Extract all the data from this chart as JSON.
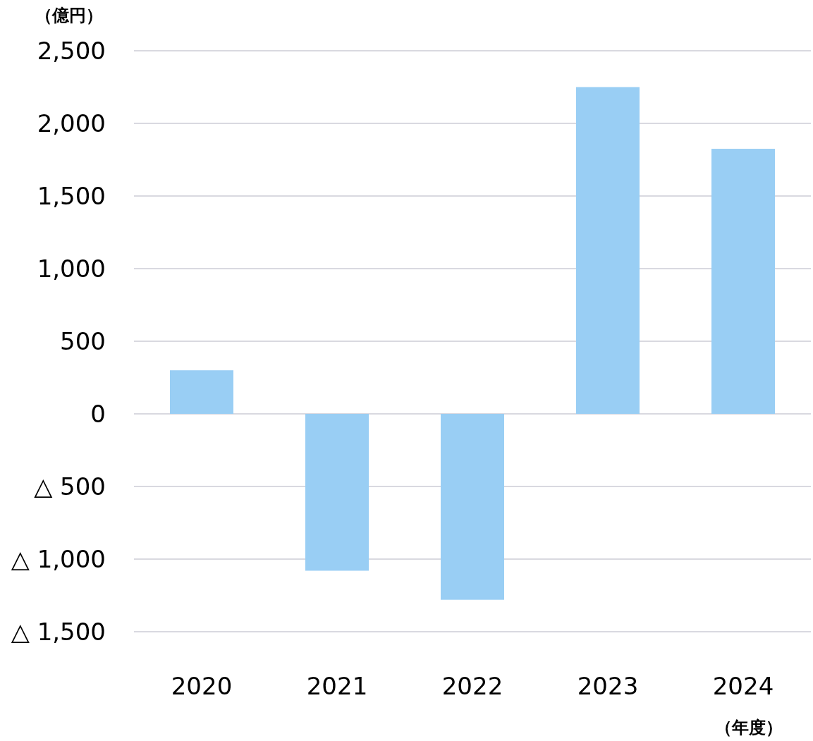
{
  "chart_data": {
    "type": "bar",
    "ylabel": "（億円）",
    "xlabel": "（年度）",
    "categories": [
      "2020",
      "2021",
      "2022",
      "2023",
      "2024"
    ],
    "values": [
      300,
      -1080,
      -1280,
      2250,
      1825
    ],
    "color": "#99cef4",
    "ylim": [
      -1500,
      2500
    ],
    "yticks": [
      {
        "value": -1500,
        "label": "△ 1,500"
      },
      {
        "value": -1000,
        "label": "△ 1,000"
      },
      {
        "value": -500,
        "label": "△ 500"
      },
      0,
      {
        "value": 500,
        "label": "500"
      },
      {
        "value": 1000,
        "label": "1,000"
      },
      {
        "value": 1500,
        "label": "1,500"
      },
      {
        "value": 2000,
        "label": "2,000"
      },
      {
        "value": 2500,
        "label": "2,500"
      }
    ],
    "grid": "y"
  }
}
